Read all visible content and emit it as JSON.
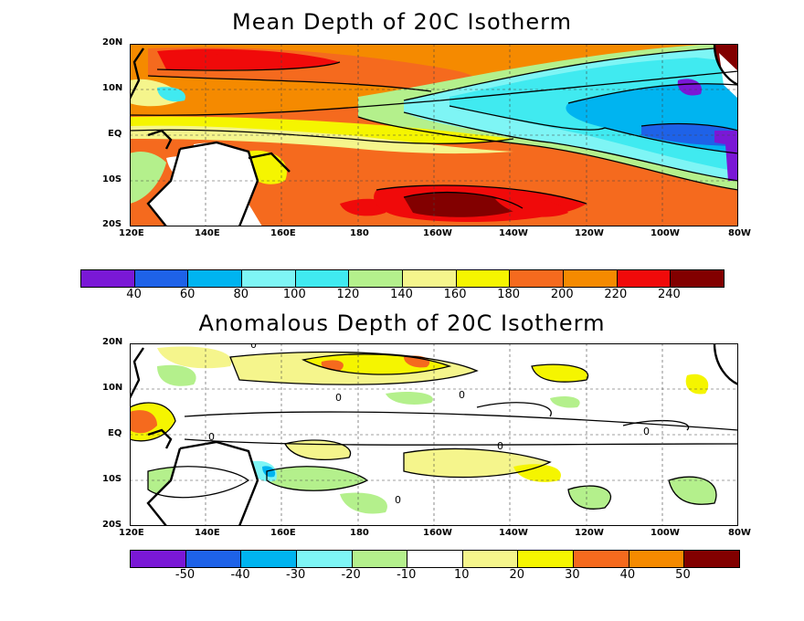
{
  "top_panel": {
    "title": "Mean Depth of 20C Isotherm",
    "colorbar": {
      "colors": [
        "#7a18d6",
        "#1e62e8",
        "#00b4f0",
        "#7ef5f5",
        "#40eaf0",
        "#b4f08c",
        "#f5f58c",
        "#f5f500",
        "#f56a1e",
        "#f58a00",
        "#f00a0a",
        "#820000"
      ],
      "labels": [
        "40",
        "60",
        "80",
        "100",
        "120",
        "140",
        "160",
        "180",
        "200",
        "220",
        "240"
      ]
    }
  },
  "bottom_panel": {
    "title": "Anomalous Depth of 20C Isotherm",
    "colorbar": {
      "colors": [
        "#7a18d6",
        "#1e62e8",
        "#00b4f0",
        "#7ef5f5",
        "#b4f08c",
        "#ffffff",
        "#f5f58c",
        "#f5f500",
        "#f56a1e",
        "#f58a00",
        "#820000"
      ],
      "labels": [
        "-50",
        "-40",
        "-30",
        "-20",
        "-10",
        "10",
        "20",
        "30",
        "40",
        "50"
      ]
    },
    "contour_label": "0"
  },
  "axes": {
    "lon_labels": [
      "120E",
      "140E",
      "160E",
      "180",
      "160W",
      "140W",
      "120W",
      "100W",
      "80W"
    ],
    "lat_labels": [
      "20N",
      "10N",
      "EQ",
      "10S",
      "20S"
    ]
  }
}
